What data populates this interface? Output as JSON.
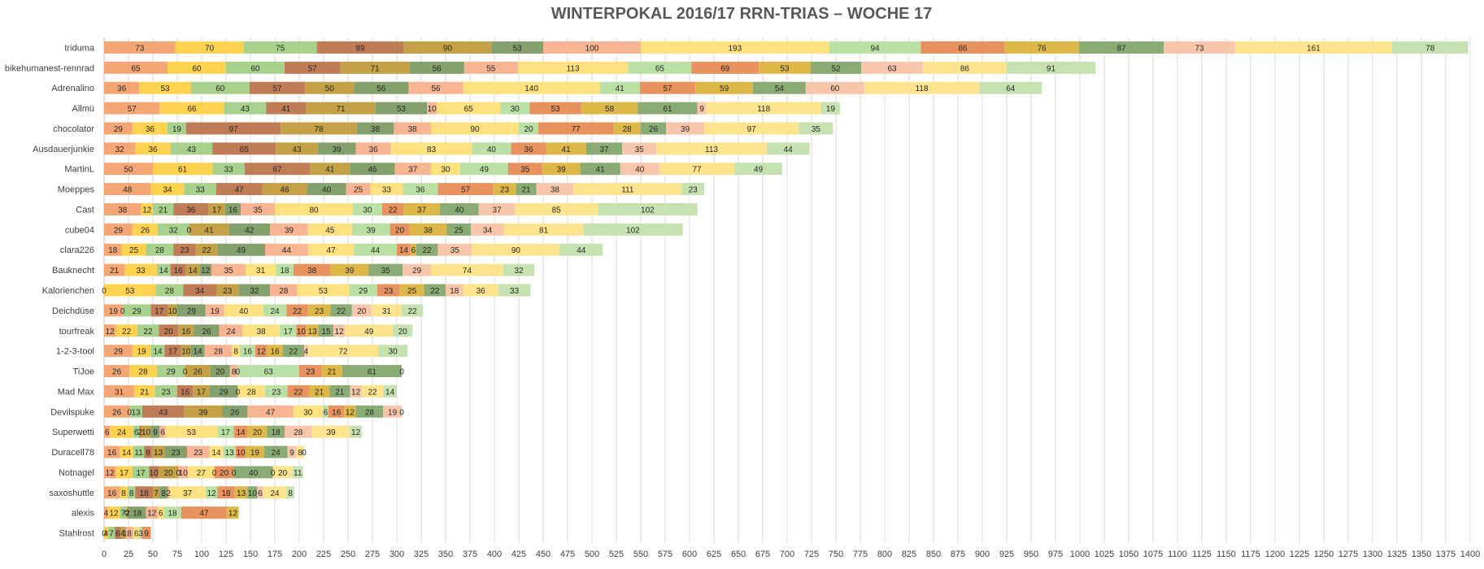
{
  "chart_data": {
    "type": "bar",
    "orientation": "horizontal",
    "stacked": true,
    "title": "WINTERPOKAL 2016/17 RRN-TRIAS – WOCHE 17",
    "xlim": [
      0,
      1400
    ],
    "x_ticks": [
      0,
      25,
      50,
      75,
      100,
      125,
      150,
      175,
      200,
      225,
      250,
      275,
      300,
      325,
      350,
      375,
      400,
      425,
      450,
      475,
      500,
      525,
      550,
      575,
      600,
      625,
      650,
      675,
      700,
      725,
      750,
      775,
      800,
      825,
      850,
      875,
      900,
      925,
      950,
      975,
      1000,
      1025,
      1050,
      1075,
      1100,
      1125,
      1150,
      1175,
      1200,
      1225,
      1250,
      1275,
      1300,
      1325,
      1350,
      1375,
      1400
    ],
    "grid": "vertical",
    "legend": "none",
    "series_colors": [
      "#f4a775",
      "#ffd34f",
      "#a9d18e",
      "#c07c56",
      "#c4a146",
      "#84a06c",
      "#f7b593",
      "#ffe17f",
      "#bbe0a5",
      "#e8935f",
      "#ddb848",
      "#8aac74",
      "#f8c6ab",
      "#ffe490",
      "#c5e2b0"
    ],
    "categories": [
      "triduma",
      "bikehumanest-rennrad",
      "Adrenalino",
      "Allmü",
      "chocolator",
      "Ausdauerjunkie",
      "MartinL",
      "Moeppes",
      "Cast",
      "cube04",
      "clara226",
      "Bauknecht",
      "Kalorienchen",
      "Deichdüse",
      "tourfreak",
      "1-2-3-tool",
      "TiJoe",
      "Mad Max",
      "Devilspuke",
      "Superwetti",
      "Duracell78",
      "Notnagel",
      "saxoshuttle",
      "alexis",
      "Stahlrost"
    ],
    "rows": [
      [
        73,
        70,
        75,
        89,
        90,
        53,
        100,
        193,
        94,
        86,
        76,
        87,
        73,
        161,
        78
      ],
      [
        65,
        60,
        60,
        57,
        71,
        56,
        55,
        113,
        65,
        69,
        53,
        52,
        63,
        86,
        91
      ],
      [
        36,
        53,
        60,
        57,
        50,
        56,
        56,
        140,
        41,
        57,
        59,
        54,
        60,
        118,
        64
      ],
      [
        57,
        66,
        43,
        41,
        71,
        53,
        10,
        65,
        30,
        53,
        58,
        61,
        9,
        118,
        19
      ],
      [
        29,
        36,
        19,
        97,
        78,
        38,
        38,
        90,
        20,
        77,
        28,
        26,
        39,
        97,
        35
      ],
      [
        32,
        36,
        43,
        65,
        43,
        39,
        36,
        83,
        40,
        36,
        41,
        37,
        35,
        113,
        44
      ],
      [
        50,
        61,
        33,
        67,
        41,
        46,
        37,
        30,
        49,
        35,
        39,
        41,
        40,
        77,
        49
      ],
      [
        48,
        34,
        33,
        47,
        46,
        40,
        25,
        33,
        36,
        57,
        23,
        21,
        38,
        111,
        23
      ],
      [
        38,
        12,
        21,
        36,
        17,
        16,
        35,
        80,
        30,
        22,
        37,
        40,
        37,
        85,
        102
      ],
      [
        29,
        26,
        32,
        0,
        41,
        42,
        39,
        45,
        39,
        20,
        38,
        25,
        34,
        81,
        102
      ],
      [
        18,
        25,
        28,
        23,
        22,
        49,
        44,
        47,
        44,
        14,
        6,
        22,
        35,
        90,
        44
      ],
      [
        21,
        33,
        14,
        16,
        14,
        12,
        35,
        31,
        18,
        38,
        39,
        35,
        29,
        74,
        32
      ],
      [
        0,
        53,
        28,
        34,
        23,
        32,
        28,
        53,
        29,
        23,
        25,
        22,
        18,
        36,
        33
      ],
      [
        19,
        0,
        29,
        17,
        10,
        29,
        19,
        40,
        24,
        22,
        23,
        22,
        20,
        31,
        22
      ],
      [
        12,
        22,
        22,
        20,
        16,
        26,
        24,
        38,
        17,
        10,
        13,
        15,
        12,
        49,
        20
      ],
      [
        29,
        19,
        14,
        17,
        10,
        14,
        28,
        8,
        16,
        12,
        16,
        22,
        4,
        72,
        30
      ],
      [
        26,
        28,
        29,
        0,
        26,
        20,
        8,
        0,
        63,
        23,
        21,
        61,
        0
      ],
      [
        31,
        21,
        23,
        16,
        17,
        29,
        0,
        28,
        23,
        22,
        21,
        21,
        12,
        22,
        14
      ],
      [
        26,
        0,
        13,
        43,
        39,
        26,
        47,
        30,
        6,
        16,
        12,
        28,
        19,
        0
      ],
      [
        6,
        24,
        6,
        2,
        10,
        9,
        6,
        53,
        17,
        14,
        20,
        18,
        28,
        39,
        12
      ],
      [
        16,
        14,
        11,
        8,
        13,
        23,
        23,
        14,
        13,
        10,
        19,
        24,
        9,
        8,
        0
      ],
      [
        12,
        17,
        17,
        10,
        20,
        0,
        10,
        27,
        0,
        20,
        0,
        40,
        0,
        20,
        11
      ],
      [
        16,
        8,
        8,
        18,
        7,
        8,
        2,
        37,
        12,
        18,
        13,
        10,
        6,
        24,
        8
      ],
      [
        4,
        12,
        7,
        0,
        2,
        18,
        12,
        6,
        18,
        47,
        12
      ],
      [
        0,
        4,
        7,
        6,
        4,
        1,
        8,
        6,
        3,
        9
      ]
    ]
  }
}
